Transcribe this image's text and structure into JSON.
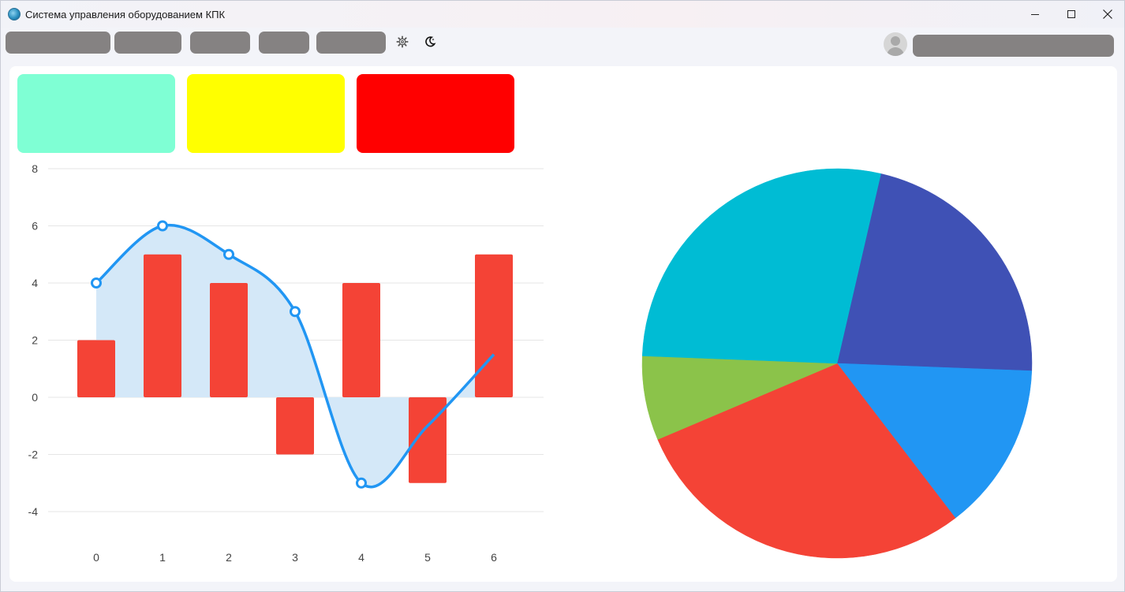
{
  "window": {
    "title": "Система управления оборудованием КПК",
    "controls": {
      "minimize": "minimize",
      "maximize": "maximize",
      "close": "close"
    }
  },
  "toolbar": {
    "menu_buttons": [
      "",
      "",
      "",
      "",
      ""
    ],
    "icons": [
      "gear-icon",
      "moon-icon"
    ],
    "user_name": ""
  },
  "status_cards": [
    {
      "name": "ok",
      "color": "#7fffd4",
      "label": ""
    },
    {
      "name": "warning",
      "color": "#ffff00",
      "label": ""
    },
    {
      "name": "error",
      "color": "#ff0000",
      "label": ""
    }
  ],
  "colors": {
    "line": "#2196f3",
    "area": "#d4e8f8",
    "bar": "#f44336",
    "grid": "#e6e6e6"
  },
  "chart_data": [
    {
      "type": "bar+line",
      "categories": [
        "0",
        "1",
        "2",
        "3",
        "4",
        "5",
        "6"
      ],
      "series": [
        {
          "name": "line",
          "type": "area-line",
          "values": [
            4,
            6,
            5,
            3,
            -3,
            -1,
            1.5
          ],
          "color": "#2196f3"
        },
        {
          "name": "bars",
          "type": "bar",
          "values": [
            2,
            5,
            4,
            -2,
            4,
            -3,
            5
          ],
          "color": "#f44336"
        }
      ],
      "ylim": [
        -4,
        8
      ],
      "yticks": [
        "8",
        "6",
        "4",
        "2",
        "0",
        "-2",
        "-4"
      ],
      "grid": true,
      "title": "",
      "xlabel": "",
      "ylabel": ""
    },
    {
      "type": "pie",
      "slices": [
        {
          "value": 22,
          "color": "#3f51b5"
        },
        {
          "value": 14,
          "color": "#2196f3"
        },
        {
          "value": 29,
          "color": "#f44336"
        },
        {
          "value": 7,
          "color": "#8bc34a"
        },
        {
          "value": 28,
          "color": "#00bcd4"
        }
      ],
      "title": ""
    }
  ]
}
